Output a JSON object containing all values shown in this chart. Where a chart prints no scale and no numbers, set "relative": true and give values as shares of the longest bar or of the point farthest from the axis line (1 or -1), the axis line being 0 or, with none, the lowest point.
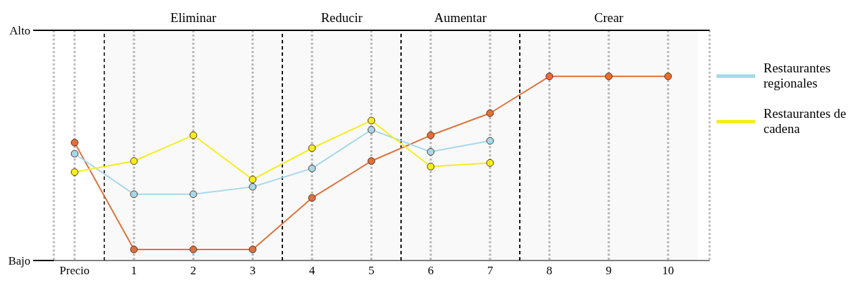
{
  "chart_data": {
    "type": "line",
    "categories": [
      "Precio",
      "1",
      "2",
      "3",
      "4",
      "5",
      "6",
      "7",
      "8",
      "9",
      "10"
    ],
    "relative": true,
    "annotations": [
      "Alto",
      "Bajo"
    ],
    "series": [
      {
        "color": "#e0703a",
        "values": [
          0.64,
          0.06,
          0.06,
          0.06,
          0.34,
          0.54,
          0.68,
          0.8,
          1,
          1,
          1
        ]
      },
      {
        "name": "Restaurantes regionales",
        "color": "#a6d8ea",
        "values": [
          0.58,
          0.36,
          0.36,
          0.4,
          0.5,
          0.71,
          0.59,
          0.65,
          null,
          null,
          null
        ]
      },
      {
        "name": "Restaurantes de cadena",
        "color": "#f5ee1c",
        "values": [
          0.48,
          0.54,
          0.68,
          0.44,
          0.61,
          0.76,
          0.51,
          0.53,
          null,
          null,
          null
        ]
      }
    ],
    "bands": [
      {
        "axis": "x",
        "from": "1",
        "to": "3",
        "label": "Eliminar"
      },
      {
        "axis": "x",
        "from": "4",
        "to": "5",
        "label": "Reducir"
      },
      {
        "axis": "x",
        "from": "6",
        "to": "7",
        "label": "Aumentar"
      },
      {
        "axis": "x",
        "from": "8",
        "to": "10",
        "label": "Crear"
      }
    ],
    "grid": "x",
    "marker": "circle",
    "line_style": "solid",
    "legend": "right"
  }
}
